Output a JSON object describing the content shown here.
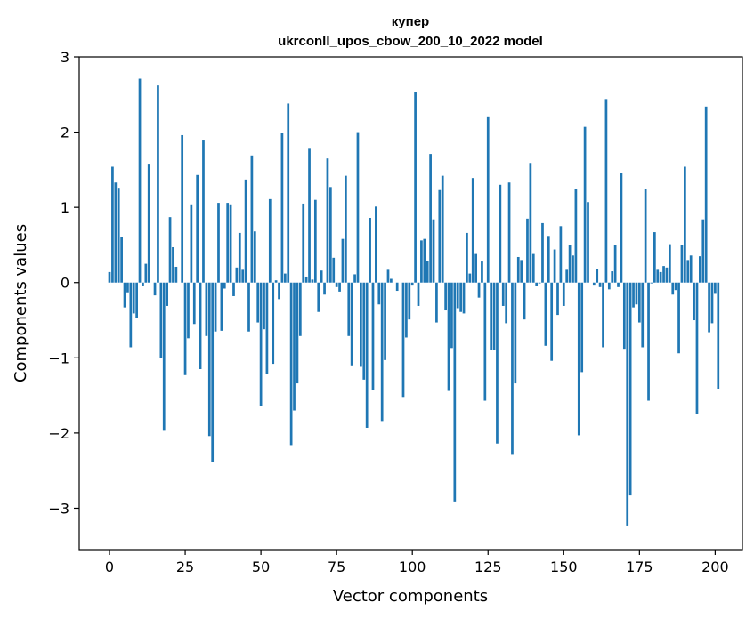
{
  "chart_data": {
    "type": "bar",
    "title_line1": "купер",
    "title_line2": "ukrconll_upos_cbow_200_10_2022 model",
    "xlabel": "Vector components",
    "ylabel": "Components values",
    "xlim": [
      -10,
      209
    ],
    "ylim": [
      -3.55,
      3.0
    ],
    "xticks": [
      0,
      25,
      50,
      75,
      100,
      125,
      150,
      175,
      200
    ],
    "yticks": [
      -3,
      -2,
      -1,
      0,
      1,
      2,
      3
    ],
    "ytick_labels": [
      "−3",
      "−2",
      "−1",
      "0",
      "1",
      "2",
      "3"
    ],
    "bar_color": "#1f77b4",
    "values": [
      0.14,
      1.54,
      1.33,
      1.26,
      0.6,
      -0.33,
      -0.13,
      -0.86,
      -0.41,
      -0.47,
      2.71,
      -0.05,
      0.25,
      1.58,
      0.0,
      -0.17,
      2.62,
      -1.0,
      -1.97,
      -0.31,
      0.87,
      0.47,
      0.21,
      0.0,
      1.96,
      -1.23,
      -0.74,
      1.04,
      -0.55,
      1.43,
      -1.15,
      1.9,
      -0.71,
      -2.04,
      -2.39,
      -0.65,
      1.06,
      -0.64,
      -0.08,
      1.06,
      1.04,
      -0.18,
      0.2,
      0.66,
      0.17,
      1.37,
      -0.65,
      1.69,
      0.68,
      -0.53,
      -1.64,
      -0.62,
      -1.21,
      1.11,
      -1.08,
      0.03,
      -0.22,
      1.99,
      0.12,
      2.38,
      -2.16,
      -1.7,
      -1.34,
      -0.71,
      1.05,
      0.08,
      1.79,
      0.04,
      1.1,
      -0.39,
      0.16,
      -0.16,
      1.65,
      1.27,
      0.33,
      -0.06,
      -0.12,
      0.58,
      1.42,
      -0.71,
      -1.1,
      0.11,
      2.0,
      -1.12,
      -1.29,
      -1.93,
      0.86,
      -1.43,
      1.01,
      -0.29,
      -1.84,
      -1.03,
      0.17,
      0.05,
      0.0,
      -0.11,
      0.0,
      -1.52,
      -0.73,
      -0.49,
      -0.04,
      2.53,
      -0.31,
      0.56,
      0.58,
      0.29,
      1.71,
      0.84,
      -0.53,
      1.23,
      1.42,
      -0.37,
      -1.44,
      -0.87,
      -2.91,
      -0.34,
      -0.39,
      -0.41,
      0.66,
      0.12,
      1.39,
      0.38,
      -0.2,
      0.28,
      -1.57,
      2.21,
      -0.9,
      -0.89,
      -2.14,
      1.3,
      -0.31,
      -0.54,
      1.33,
      -2.29,
      -1.34,
      0.34,
      0.3,
      -0.49,
      0.85,
      1.59,
      0.38,
      -0.05,
      -0.01,
      0.79,
      -0.84,
      0.62,
      -1.04,
      0.44,
      -0.43,
      0.75,
      -0.31,
      0.17,
      0.5,
      0.36,
      1.25,
      -2.03,
      -1.19,
      2.07,
      1.07,
      0.0,
      -0.04,
      0.18,
      -0.06,
      -0.86,
      2.44,
      -0.09,
      0.15,
      0.5,
      -0.06,
      1.46,
      -0.88,
      -3.23,
      -2.83,
      -0.33,
      -0.29,
      -0.53,
      -0.86,
      1.24,
      -1.57,
      -0.01,
      0.67,
      0.17,
      0.14,
      0.22,
      0.2,
      0.51,
      -0.16,
      -0.1,
      -0.94,
      0.5,
      1.54,
      0.3,
      0.36,
      -0.5,
      -1.75,
      0.35,
      0.84,
      2.34,
      -0.66,
      -0.54,
      -0.15,
      -1.41
    ]
  }
}
